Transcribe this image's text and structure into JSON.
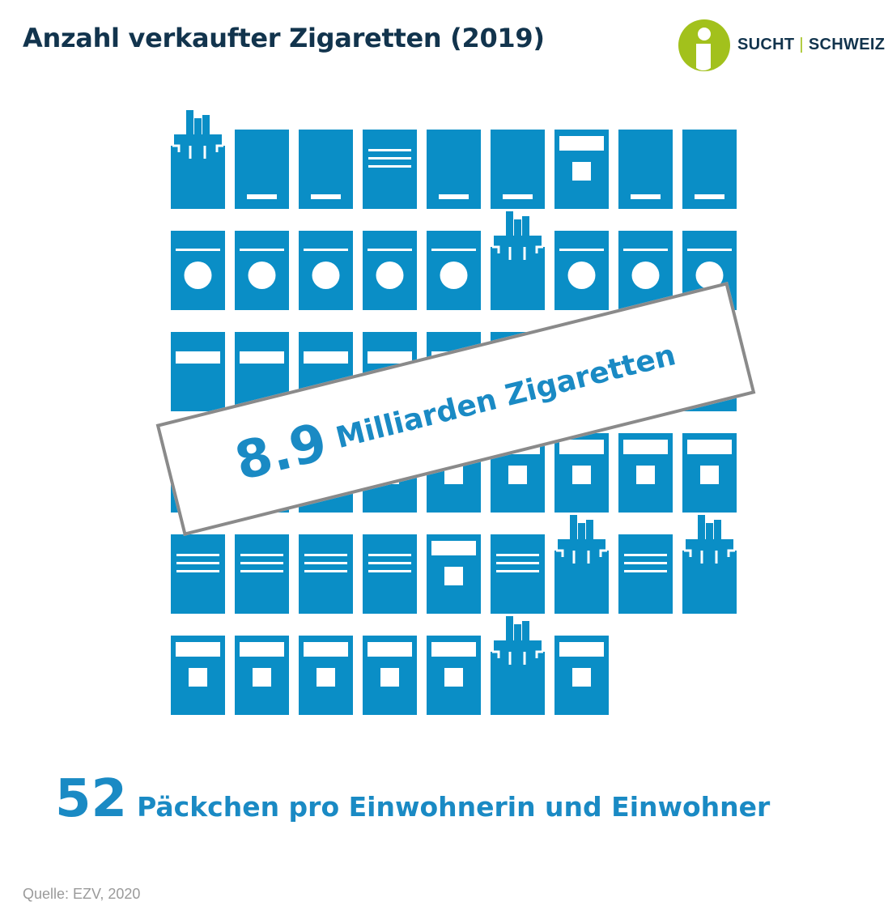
{
  "title": "Anzahl verkaufter Zigaretten (2019)",
  "logo": {
    "left": "SUCHT",
    "separator": "|",
    "right": "SCHWEIZ",
    "colors": {
      "circle": "#a2c11c",
      "text": "#12344d"
    }
  },
  "banner": {
    "number": "8.9",
    "label": "Milliarden Zigaretten"
  },
  "stat": {
    "number": "52",
    "label": "Päckchen pro Einwohnerin und Einwohner"
  },
  "source": "Quelle: EZV, 2020",
  "colors": {
    "pack": "#0a8ec6",
    "accent_text": "#1a8ac4",
    "title": "#12344d"
  },
  "packs": {
    "rows": [
      [
        "open",
        "bar",
        "bar",
        "lines-top",
        "bar",
        "bar",
        "window",
        "bar",
        "bar"
      ],
      [
        "circle",
        "circle",
        "circle",
        "circle",
        "circle",
        "open",
        "circle",
        "circle",
        "circle"
      ],
      [
        "label",
        "label",
        "label",
        "label",
        "label",
        "label",
        "label",
        "label",
        "label"
      ],
      [
        "window",
        "window",
        "window",
        "window",
        "window",
        "window",
        "window",
        "window",
        "window"
      ],
      [
        "lines-top",
        "lines",
        "lines",
        "lines",
        "window",
        "lines",
        "open",
        "lines",
        "open"
      ],
      [
        "window",
        "window",
        "window",
        "window",
        "window",
        "open",
        "window"
      ]
    ]
  }
}
